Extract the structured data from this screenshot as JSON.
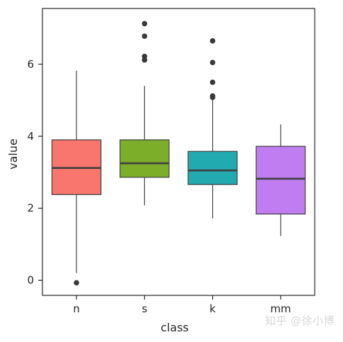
{
  "chart_data": {
    "type": "box",
    "categories": [
      "n",
      "s",
      "k",
      "mm"
    ],
    "colors": [
      "#f8766d",
      "#7cae2a",
      "#22aab1",
      "#c07cf1"
    ],
    "boxes": [
      {
        "q1": 2.38,
        "median": 3.12,
        "q3": 3.9,
        "whisker_low": 0.2,
        "whisker_high": 5.82,
        "outliers": [
          -0.07
        ]
      },
      {
        "q1": 2.86,
        "median": 3.25,
        "q3": 3.9,
        "whisker_low": 2.08,
        "whisker_high": 5.4,
        "outliers": [
          6.12,
          6.22,
          6.78,
          7.13
        ]
      },
      {
        "q1": 2.66,
        "median": 3.05,
        "q3": 3.58,
        "whisker_low": 1.72,
        "whisker_high": 5.02,
        "outliers": [
          5.08,
          5.12,
          5.5,
          6.05,
          6.65
        ]
      },
      {
        "q1": 1.84,
        "median": 2.82,
        "q3": 3.72,
        "whisker_low": 1.23,
        "whisker_high": 4.33,
        "outliers": []
      }
    ],
    "yticks": [
      0,
      2,
      4,
      6
    ],
    "ylim": [
      -0.42,
      7.55
    ],
    "xlabel": "class",
    "ylabel": "value",
    "grid": false
  },
  "watermark": "知乎 @徐小博"
}
